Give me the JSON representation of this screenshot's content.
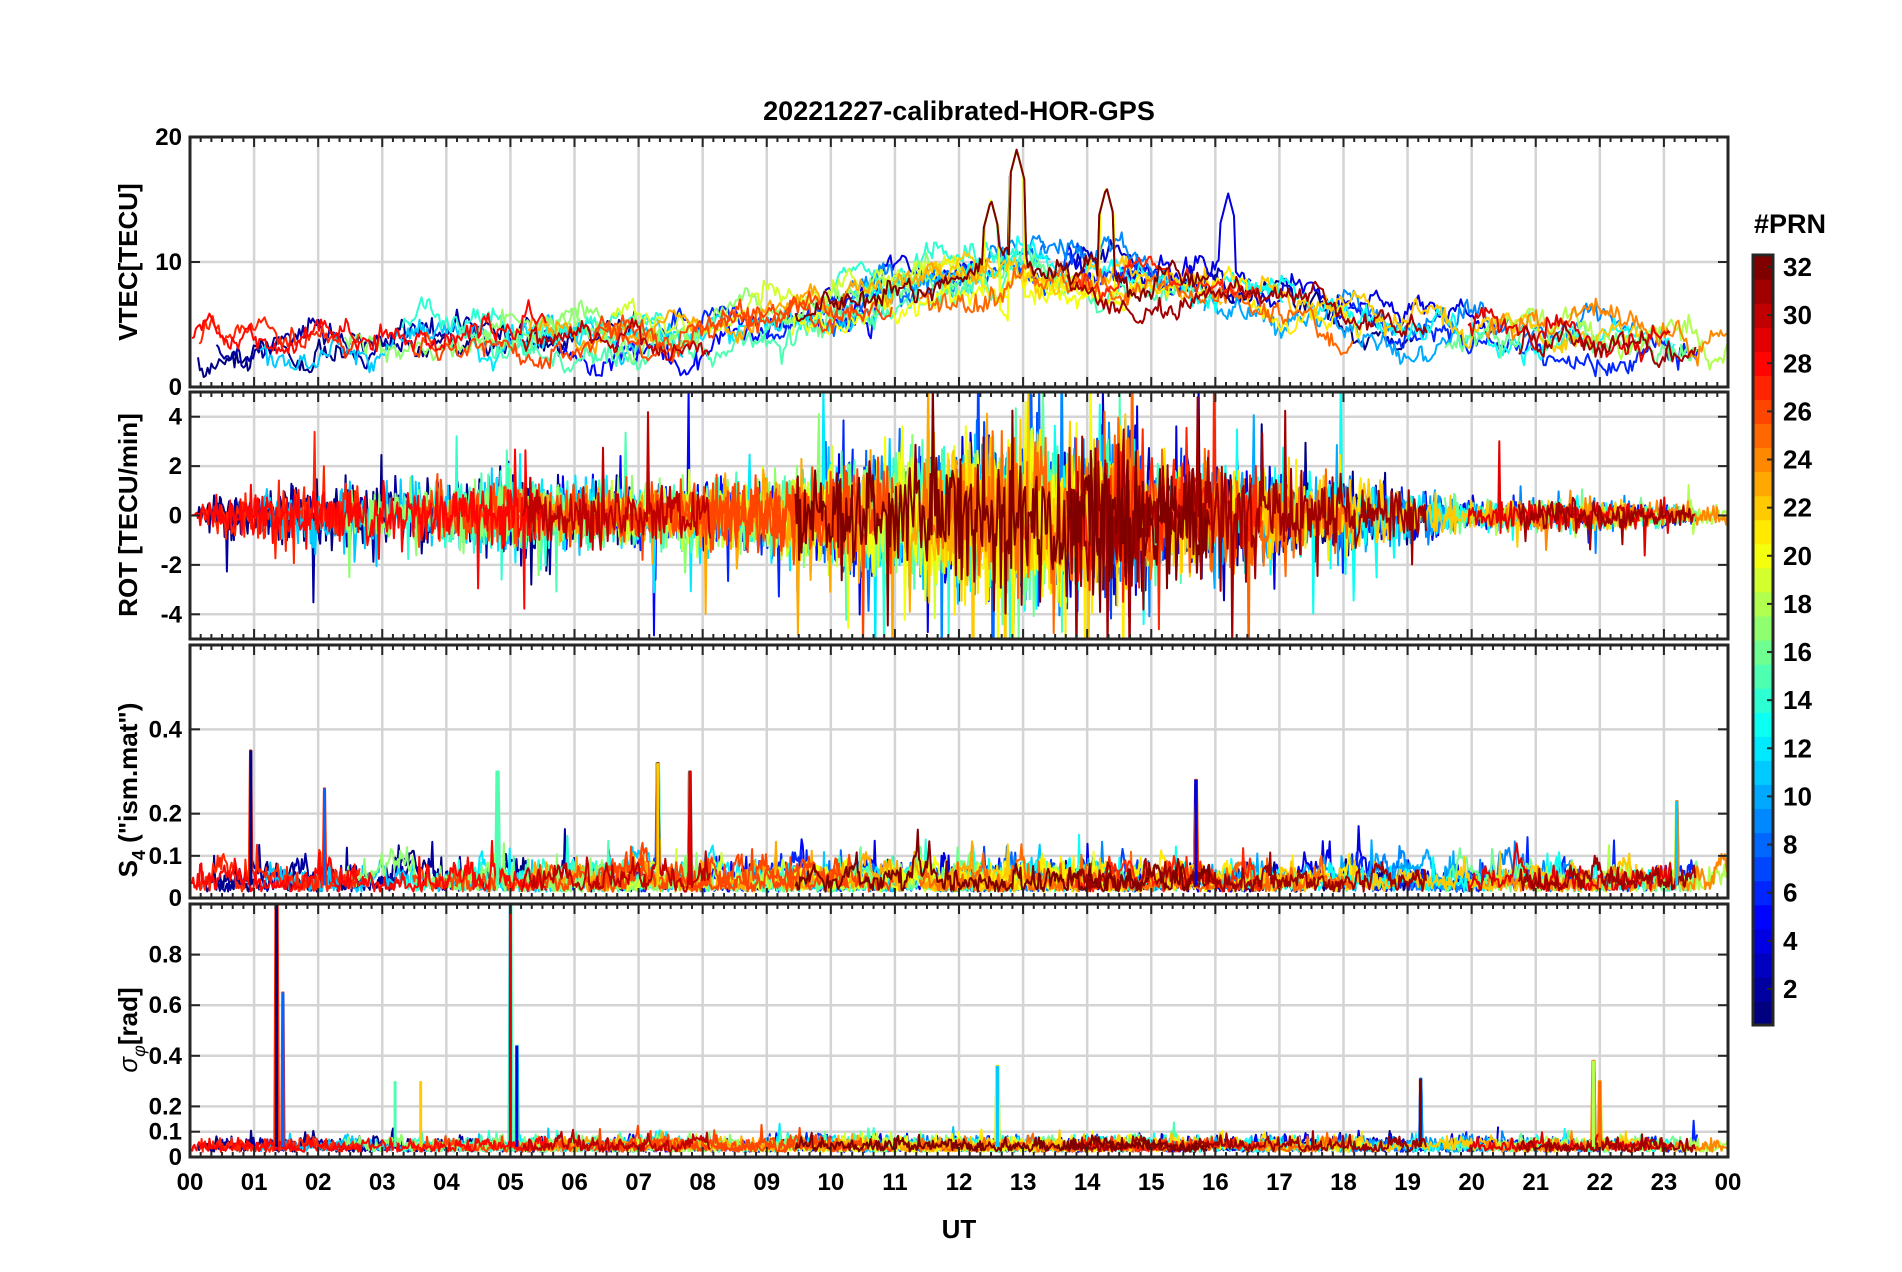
{
  "figure": {
    "title": "20221227-calibrated-HOR-GPS",
    "xlabel": "UT"
  },
  "x_ticks": [
    "00",
    "01",
    "02",
    "03",
    "04",
    "05",
    "06",
    "07",
    "08",
    "09",
    "10",
    "11",
    "12",
    "13",
    "14",
    "15",
    "16",
    "17",
    "18",
    "19",
    "20",
    "21",
    "22",
    "23",
    "00"
  ],
  "colorbar": {
    "label": "#PRN",
    "range": [
      1,
      32
    ],
    "colormap": "jet",
    "ticks": [
      "2",
      "4",
      "6",
      "8",
      "10",
      "12",
      "14",
      "16",
      "18",
      "20",
      "22",
      "24",
      "26",
      "28",
      "30",
      "32"
    ]
  },
  "chart_data": [
    {
      "type": "line",
      "id": "vtec",
      "ylabel": "VTEC[TECU]",
      "xlim": [
        0,
        24
      ],
      "ylim": [
        0,
        20
      ],
      "yticks": [
        "0",
        "10",
        "20"
      ],
      "grid": true,
      "series_count": 32,
      "envelope": {
        "x_hours": [
          0,
          2,
          4,
          6,
          8,
          10,
          11,
          12,
          13,
          14,
          15,
          16,
          17,
          18,
          19,
          20,
          22,
          24
        ],
        "typical_vtec": [
          3,
          3.5,
          4,
          4,
          4.5,
          6.5,
          8,
          9,
          9.5,
          9,
          8.5,
          8,
          7,
          6,
          5,
          4,
          3.5,
          3
        ]
      },
      "peak_values": [
        {
          "x": 12.9,
          "y": 19
        },
        {
          "x": 14.3,
          "y": 16
        },
        {
          "x": 16.2,
          "y": 15.5
        },
        {
          "x": 12.5,
          "y": 15
        }
      ]
    },
    {
      "type": "line",
      "id": "rot",
      "ylabel": "ROT [TECU/min]",
      "xlim": [
        0,
        24
      ],
      "ylim": [
        -5,
        5
      ],
      "yticks": [
        "-4",
        "-2",
        "0",
        "2",
        "4"
      ],
      "grid": true,
      "series_count": 32,
      "amplitude_profile": {
        "x_hours": [
          0,
          1,
          3,
          5,
          7,
          9,
          11,
          12,
          13,
          14,
          14.6,
          15,
          16,
          17,
          18,
          19,
          20,
          22,
          24
        ],
        "typical_abs_rot": [
          0.5,
          1.5,
          1.5,
          2,
          1.5,
          2,
          3.5,
          4,
          5,
          4,
          5,
          3,
          3,
          2.5,
          2,
          1.5,
          0.8,
          0.8,
          0.5
        ]
      }
    },
    {
      "type": "line",
      "id": "s4",
      "ylabel": "S4 (\"ism.mat\")",
      "xlim": [
        0,
        24
      ],
      "ylim": [
        0,
        0.6
      ],
      "yticks": [
        "0",
        "0.1",
        "0.2",
        "0.4"
      ],
      "grid": true,
      "series_count": 32,
      "baseline": 0.03,
      "peak_values": [
        {
          "x": 0.95,
          "y": 0.35
        },
        {
          "x": 2.1,
          "y": 0.26
        },
        {
          "x": 4.8,
          "y": 0.3
        },
        {
          "x": 7.3,
          "y": 0.32
        },
        {
          "x": 7.8,
          "y": 0.3
        },
        {
          "x": 15.7,
          "y": 0.28
        },
        {
          "x": 23.2,
          "y": 0.23
        }
      ]
    },
    {
      "type": "line",
      "id": "sigma_phi",
      "ylabel": "σφ[rad]",
      "xlim": [
        0,
        24
      ],
      "ylim": [
        0,
        1
      ],
      "yticks": [
        "0",
        "0.1",
        "0.2",
        "0.4",
        "0.6",
        "0.8"
      ],
      "grid": true,
      "series_count": 32,
      "baseline": 0.04,
      "peak_values": [
        {
          "x": 1.35,
          "y": 1.0
        },
        {
          "x": 1.45,
          "y": 0.65
        },
        {
          "x": 3.2,
          "y": 0.3
        },
        {
          "x": 3.6,
          "y": 0.3
        },
        {
          "x": 5.0,
          "y": 1.0
        },
        {
          "x": 5.1,
          "y": 0.44
        },
        {
          "x": 12.6,
          "y": 0.36
        },
        {
          "x": 21.9,
          "y": 0.38
        },
        {
          "x": 22.0,
          "y": 0.3
        },
        {
          "x": 19.2,
          "y": 0.31
        }
      ]
    }
  ]
}
